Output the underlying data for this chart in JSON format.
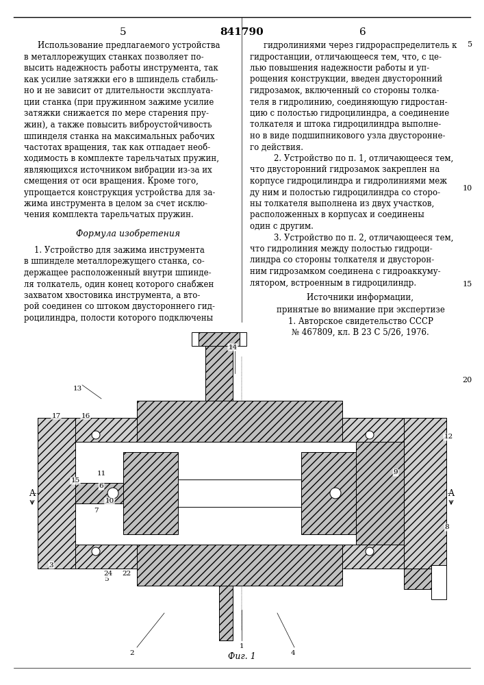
{
  "page_number_center": "841790",
  "page_number_left": "5",
  "page_number_right": "6",
  "background_color": "#ffffff",
  "text_color": "#000000",
  "left_column_text": [
    "Использование предлагаемого устройства",
    "в металлорежущих станках позволяет по-",
    "высить надежность работы инструмента, так",
    "как усилие затяжки его в шпиндель стабиль-",
    "но и не зависит от длительности эксплуата-",
    "ции станка (при пружинном зажиме усилие",
    "затяжки снижается по мере старения пру-",
    "жин), а также повысить виброустойчивость",
    "шпинделя станка на максимальных рабочих",
    "частотах вращения, так как отпадает необ-",
    "ходимость в комплекте тарельчатых пружин,",
    "являющихся источником вибрации из-за их",
    "смещения от оси вращения. Кроме того,",
    "упрощается конструкция устройства для за-",
    "жима инструмента в целом за счет исклю-",
    "чения комплекта тарельчатых пружин."
  ],
  "formula_title": "Формула изобретения",
  "formula_text_left": [
    "    1. Устройство для зажима инструмента",
    "в шпинделе металлорежущего станка, со-",
    "держащее расположенный внутри шпинде-",
    "ля толкатель, один конец которого снабжен",
    "захватом хвостовика инструмента, а вто-",
    "рой соединен со штоком двустороннего гид-",
    "роцилиндра, полости которого подключены"
  ],
  "right_column_text": [
    "гидролиниями через гидрораспределитель к",
    "гидростанции, отличающееся тем, что, с це-",
    "лью повышения надежности работы и уп-",
    "рощения конструкции, введен двусторонний",
    "гидрозамок, включенный со стороны толка-",
    "теля в гидролинию, соединяющую гидростан-",
    "цию с полостью гидроцилиндра, а соединение",
    "толкателя и штока гидроцилиндра выполне-",
    "но в виде подшипникового узла двусторонне-",
    "го действия.",
    "    2. Устройство по п. 1, отличающееся тем,",
    "что двусторонний гидрозамок закреплен на",
    "корпусе гидроцилиндра и гидролиниями меж",
    "ду ним и полостью гидроцилиндра со сторо-",
    "ны толкателя выполнена из двух участков,",
    "расположенных в корпусах и соединены",
    "один с другим.",
    "    3. Устройство по п. 2, отличающееся тем,",
    "что гидролиния между полостью гидроци-",
    "линдра со стороны толкателя и двусторон-",
    "ним гидрозамком соединена с гидроаккуму-",
    "лятором, встроенным в гидроцилиндр."
  ],
  "sources_title": "Источники информации,",
  "sources_text": [
    "принятые во внимание при экспертизе",
    "1. Авторское свидетельство СССР",
    "№ 467809, кл. В 23 С 5/26, 1976."
  ],
  "fig_label": "Фиг. 1",
  "line_numbers_right": [
    "5",
    "10",
    "15",
    "20"
  ]
}
